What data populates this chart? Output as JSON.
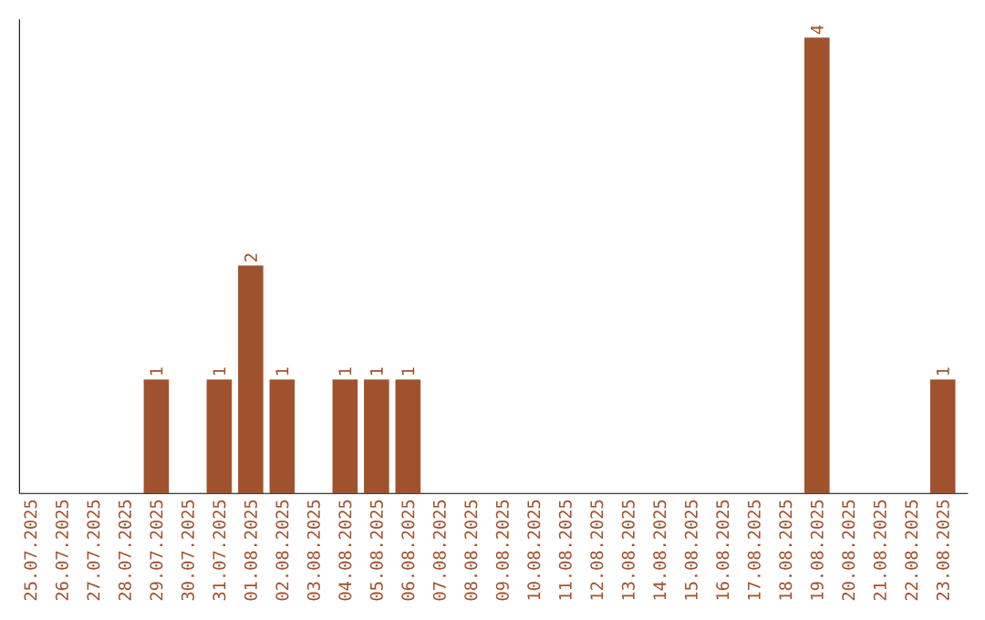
{
  "chart_data": {
    "type": "bar",
    "categories": [
      "25.07.2025",
      "26.07.2025",
      "27.07.2025",
      "28.07.2025",
      "29.07.2025",
      "30.07.2025",
      "31.07.2025",
      "01.08.2025",
      "02.08.2025",
      "03.08.2025",
      "04.08.2025",
      "05.08.2025",
      "06.08.2025",
      "07.08.2025",
      "08.08.2025",
      "09.08.2025",
      "10.08.2025",
      "11.08.2025",
      "12.08.2025",
      "13.08.2025",
      "14.08.2025",
      "15.08.2025",
      "16.08.2025",
      "17.08.2025",
      "18.08.2025",
      "19.08.2025",
      "20.08.2025",
      "21.08.2025",
      "22.08.2025",
      "23.08.2025"
    ],
    "values": [
      0,
      0,
      0,
      0,
      1,
      0,
      1,
      2,
      1,
      0,
      1,
      1,
      1,
      0,
      0,
      0,
      0,
      0,
      0,
      0,
      0,
      0,
      0,
      0,
      0,
      4,
      0,
      0,
      0,
      1
    ],
    "value_labels": [
      null,
      null,
      null,
      null,
      "1",
      null,
      "1",
      "2",
      "1",
      null,
      "1",
      "1",
      "1",
      null,
      null,
      null,
      null,
      null,
      null,
      null,
      null,
      null,
      null,
      null,
      null,
      "4",
      null,
      null,
      null,
      "1"
    ],
    "color": "#a0522d"
  }
}
